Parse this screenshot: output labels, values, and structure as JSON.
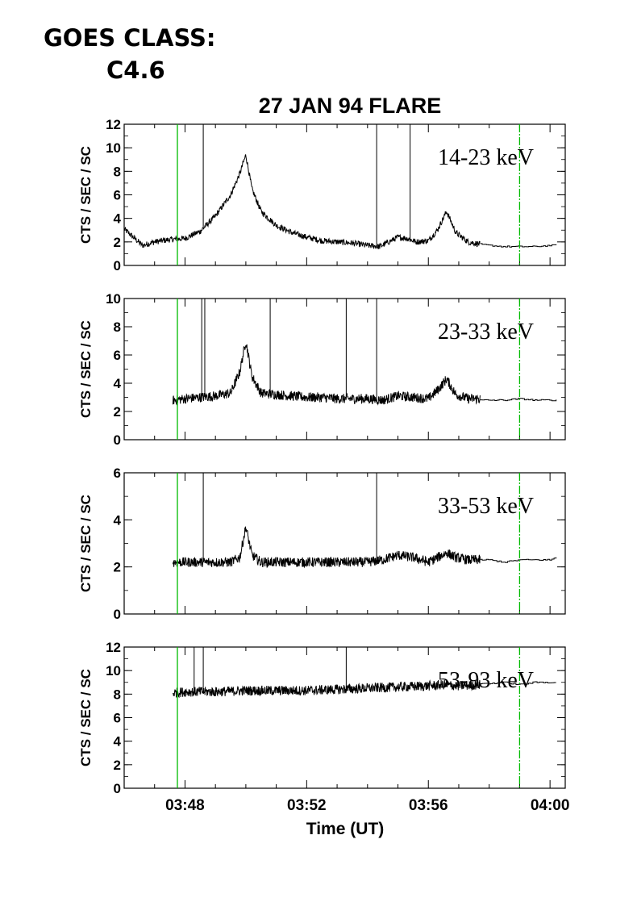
{
  "header": {
    "goes_label": "GOES CLASS:",
    "goes_value": "C4.6"
  },
  "chart_data": {
    "type": "line",
    "title": "27 JAN 94 FLARE",
    "xlabel": "Time (UT)",
    "x_units": "minutes after 03:00 UT",
    "xlim": [
      46.0,
      60.5
    ],
    "x_ticks": [
      48,
      52,
      56,
      60
    ],
    "x_tick_labels": [
      "03:48",
      "03:52",
      "03:56",
      "04:00"
    ],
    "marker_lines": [
      47.75,
      59.0
    ],
    "marker_color": "#00bb00",
    "panels": [
      {
        "band": "14-23 keV",
        "ylabel": "CTS / SEC / SC",
        "ylim": [
          0,
          12
        ],
        "yticks": [
          0,
          2,
          4,
          6,
          8,
          10,
          12
        ],
        "series": [
          {
            "x": [
              46.0,
              46.3,
              46.6,
              47.0,
              47.5,
              48.0,
              48.5,
              49.0,
              49.5,
              49.8,
              50.0,
              50.2,
              50.5,
              51.0,
              51.5,
              52.0,
              52.5,
              53.0,
              53.5,
              54.0,
              54.4,
              54.7,
              55.0,
              55.3,
              55.6,
              56.0,
              56.3,
              56.6,
              56.9,
              57.3,
              57.7
            ],
            "y": [
              3.1,
              2.4,
              1.7,
              2.0,
              2.2,
              2.3,
              2.9,
              4.2,
              6.0,
              7.8,
              9.4,
              6.5,
              4.6,
              3.4,
              2.8,
              2.4,
              2.1,
              2.0,
              1.9,
              1.7,
              1.6,
              2.0,
              2.4,
              2.3,
              2.0,
              2.1,
              3.0,
              4.6,
              2.8,
              2.0,
              1.8
            ]
          },
          {
            "x": [
              57.7,
              58.0,
              58.5,
              59.0,
              59.5,
              60.0,
              60.2
            ],
            "y": [
              1.8,
              1.7,
              1.6,
              1.6,
              1.6,
              1.7,
              1.7
            ]
          }
        ],
        "spikes": [
          48.6,
          54.3,
          55.4
        ]
      },
      {
        "band": "23-33 keV",
        "ylabel": "CTS / SEC / SC",
        "ylim": [
          0,
          10
        ],
        "yticks": [
          0,
          2,
          4,
          6,
          8,
          10
        ],
        "series": [
          {
            "x": [
              47.6,
              48.0,
              48.5,
              49.0,
              49.5,
              49.8,
              50.0,
              50.2,
              50.5,
              51.0,
              51.5,
              52.0,
              52.5,
              53.0,
              53.5,
              54.0,
              54.5,
              55.0,
              55.5,
              56.0,
              56.3,
              56.6,
              56.9,
              57.3,
              57.7
            ],
            "y": [
              2.8,
              2.9,
              3.0,
              3.1,
              3.3,
              4.8,
              7.0,
              4.5,
              3.3,
              3.2,
              3.1,
              3.0,
              3.0,
              2.9,
              2.9,
              2.9,
              2.8,
              3.1,
              3.0,
              2.9,
              3.5,
              4.3,
              3.2,
              2.9,
              2.9
            ]
          },
          {
            "x": [
              57.7,
              58.0,
              58.5,
              59.0,
              59.5,
              60.0,
              60.2
            ],
            "y": [
              2.8,
              2.8,
              2.8,
              2.9,
              2.8,
              2.8,
              2.8
            ]
          }
        ],
        "spikes": [
          48.55,
          48.65,
          50.8,
          53.3,
          54.3
        ]
      },
      {
        "band": "33-53 keV",
        "ylabel": "CTS / SEC / SC",
        "ylim": [
          0,
          6
        ],
        "yticks": [
          0,
          2,
          4,
          6
        ],
        "series": [
          {
            "x": [
              47.6,
              48.0,
              48.5,
              49.0,
              49.5,
              49.8,
              50.0,
              50.2,
              50.5,
              51.0,
              52.0,
              53.0,
              54.0,
              54.5,
              55.0,
              55.5,
              56.0,
              56.3,
              56.6,
              56.9,
              57.3,
              57.7
            ],
            "y": [
              2.2,
              2.2,
              2.2,
              2.2,
              2.2,
              2.4,
              3.7,
              2.5,
              2.2,
              2.2,
              2.2,
              2.2,
              2.2,
              2.3,
              2.5,
              2.4,
              2.2,
              2.4,
              2.6,
              2.4,
              2.3,
              2.3
            ]
          },
          {
            "x": [
              57.7,
              58.0,
              58.5,
              59.0,
              59.5,
              60.0,
              60.2
            ],
            "y": [
              2.3,
              2.3,
              2.2,
              2.3,
              2.3,
              2.3,
              2.4
            ]
          }
        ],
        "spikes": [
          48.6,
          54.3
        ]
      },
      {
        "band": "53-93 keV",
        "ylabel": "CTS / SEC / SC",
        "ylim": [
          0,
          12
        ],
        "yticks": [
          0,
          2,
          4,
          6,
          8,
          10,
          12
        ],
        "series": [
          {
            "x": [
              47.6,
              48.0,
              49.0,
              50.0,
              51.0,
              52.0,
              53.0,
              54.0,
              55.0,
              56.0,
              56.5,
              57.0,
              57.7
            ],
            "y": [
              8.1,
              8.2,
              8.2,
              8.3,
              8.3,
              8.3,
              8.4,
              8.5,
              8.6,
              8.7,
              8.8,
              8.7,
              8.8
            ]
          },
          {
            "x": [
              57.7,
              58.0,
              58.5,
              59.0,
              59.5,
              60.0,
              60.2
            ],
            "y": [
              8.9,
              8.9,
              9.0,
              8.8,
              9.0,
              9.0,
              9.0
            ]
          }
        ],
        "spikes": [
          48.3,
          48.6,
          53.3
        ]
      }
    ]
  }
}
